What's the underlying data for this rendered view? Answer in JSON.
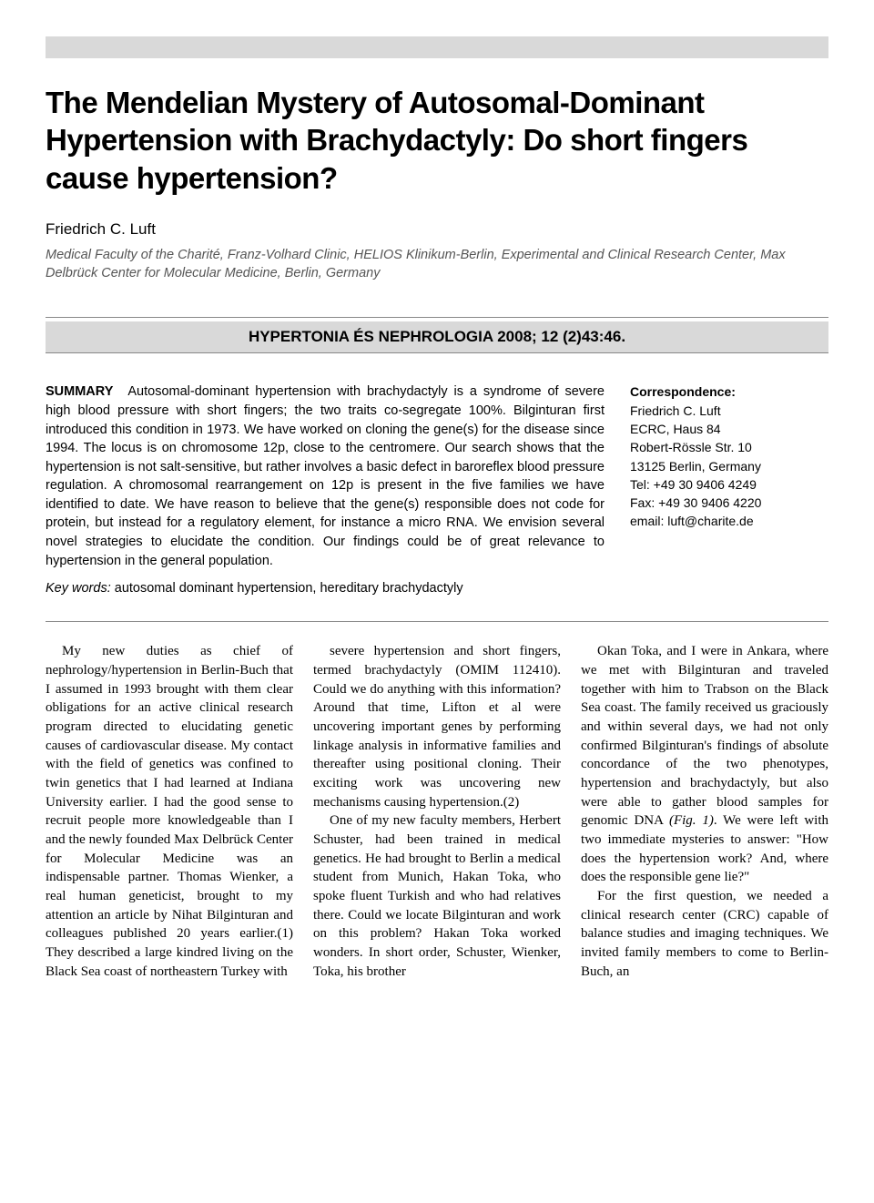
{
  "title": "The Mendelian Mystery of Autosomal-Dominant Hypertension with Brachydactyly: Do short fingers cause hypertension?",
  "author": "Friedrich C. Luft",
  "affiliation": "Medical Faculty of the Charité, Franz-Volhard Clinic, HELIOS Klinikum-Berlin, Experimental and Clinical Research Center, Max Delbrück Center for Molecular Medicine, Berlin, Germany",
  "journal": "HYPERTONIA ÉS NEPHROLOGIA 2008; 12 (2)43:46.",
  "summary_label": "SUMMARY",
  "summary": "Autosomal-dominant hypertension with brachydactyly is a syndrome of severe high blood pressure with short fingers; the two traits co-segregate 100%. Bilginturan first introduced this condition in 1973. We have worked on cloning the gene(s) for the disease since 1994. The locus is on chromosome 12p, close to the centromere. Our search shows that the hypertension is not salt-sensitive, but rather involves a basic defect in baroreflex blood pressure regulation. A chromosomal rearrangement on 12p is present in the five families we have identified to date. We have reason to believe that the gene(s) responsible does not code for protein, but instead for a regulatory element, for instance a micro RNA. We envision several novel strategies to elucidate the condition. Our findings could be of great relevance to hypertension in the general population.",
  "correspondence_label": "Correspondence:",
  "correspondence": {
    "name": "Friedrich C. Luft",
    "line1": "ECRC, Haus 84",
    "line2": "Robert-Rössle Str. 10",
    "line3": "13125 Berlin, Germany",
    "tel": "Tel: +49 30 9406 4249",
    "fax": "Fax: +49 30 9406 4220",
    "email": "email: luft@charite.de"
  },
  "keywords_label": "Key words:",
  "keywords": " autosomal dominant hypertension, hereditary brachydactyly",
  "body": {
    "col1": "My new duties as chief of nephrology/hypertension in Berlin-Buch that I assumed in 1993 brought with them clear obligations for an active clinical research program directed to elucidating genetic causes of cardiovascular disease. My contact with the field of genetics was confined to twin genetics that I had learned at Indiana University earlier. I had the good sense to recruit people more knowledgeable than I and the newly founded Max Delbrück Center for Molecular Medicine was an indispensable partner. Thomas Wienker, a real human geneticist, brought to my attention an article by Nihat Bilginturan and colleagues published 20 years earlier.(1) They described a large kindred living on the Black Sea coast of northeastern Turkey with",
    "col2_p1": "severe hypertension and short fingers, termed brachydactyly (OMIM 112410). Could we do anything with this information? Around that time, Lifton et al were uncovering important genes by performing linkage analysis in informative families and thereafter using positional cloning. Their exciting work was uncovering new mechanisms causing hypertension.(2)",
    "col2_p2": "One of my new faculty members, Herbert Schuster, had been trained in medical genetics. He had brought to Berlin a medical student from Munich, Hakan Toka, who spoke fluent Turkish and who had relatives there. Could we locate Bilginturan and work on this problem? Hakan Toka worked wonders. In short order, Schuster, Wienker, Toka, his brother",
    "col3_p1_a": "Okan Toka, and I were in Ankara, where we met with Bilginturan and traveled together with him to Trabson on the Black Sea coast. The family received us graciously and within several days, we had not only confirmed Bilginturan's findings of absolute concordance of the two phenotypes, hypertension and brachydactyly, but also were able to gather blood samples for genomic DNA ",
    "col3_fig": "(Fig. 1)",
    "col3_p1_b": ". We were left with two immediate mysteries to answer: \"How does the hypertension work? And, where does the responsible gene lie?\"",
    "col3_p2": "For the first question, we needed a clinical research center (CRC) capable of balance studies and imaging techniques. We invited family members to come to Berlin-Buch, an"
  },
  "colors": {
    "bar": "#d9d9d9",
    "text": "#000000",
    "affiliation": "#555555",
    "rule": "#888888"
  }
}
